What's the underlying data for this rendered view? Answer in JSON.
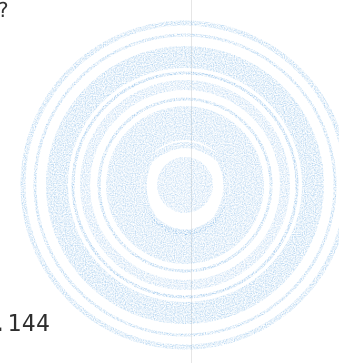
{
  "document": {
    "corner_fragment": "?",
    "page_number": ".144"
  },
  "stamp": {
    "description_icon": "circular-ink-seal-icon",
    "ink_color": "#3b8fd9"
  }
}
